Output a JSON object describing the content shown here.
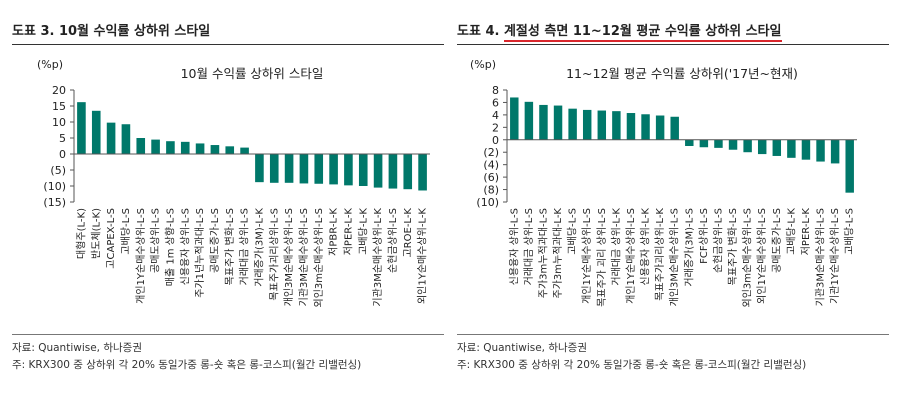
{
  "colors": {
    "bar": "#00786a",
    "axis": "#555555",
    "title_underline": "#d9262c"
  },
  "left": {
    "title_prefix": "도표 3.",
    "title_rest": "10월 수익률 상하위 스타일",
    "source": "자료: Quantiwise, 하나증권",
    "note": "주: KRX300 중 상하위 각 20% 동일가중 롱-숏 혹은 롱-코스피(월간 리밸런싱)"
  },
  "right": {
    "title_prefix": "도표 4.",
    "title_rest": "계절성 측면 11~12월 평균 수익률 상하위 스타일",
    "source": "자료: Quantiwise, 하나증권",
    "note": "주: KRX300 중 상하위 각 20% 동일가중 롱-숏 혹은 롱-코스피(월간 리밸런싱)"
  },
  "chart_data": [
    {
      "type": "bar",
      "title": "10월 수익률 상하위 스타일",
      "ylabel": "(%p)",
      "ylim": [
        -15,
        20
      ],
      "ytick_step": 5,
      "ytick_labels": [
        "20",
        "15",
        "10",
        "5",
        "0",
        "(5)",
        "(10)",
        "(15)"
      ],
      "categories": [
        "대형주(L-K)",
        "반도체(L-K)",
        "고CAPEX-L-S",
        "고배당-L-S",
        "개인1Y순매수상위-L-S",
        "공매도상위-L-S",
        "매출 1m 상향-L-S",
        "신용융자 상위-L-S",
        "주가1년누적과대-L-S",
        "공매도증가-L-S",
        "목표주가 변화-L-S",
        "거래대금 상위-L-S",
        "거래증가(3M)-L-K",
        "목표주가괴리상위-L-S",
        "개인3M순매수상위-L-S",
        "기관3M순매수상위-L-S",
        "외인3m순매수상위-L-S",
        "저PBR-L-K",
        "저PER-L-K",
        "고배당-L-K",
        "기관3M순매수상위-L-K",
        "순현금상위-L-S",
        "고ROE-L-K",
        "외인1Y순매수상위-L-K"
      ],
      "values": [
        16.2,
        13.5,
        9.8,
        9.3,
        5.0,
        4.5,
        4.0,
        3.8,
        3.3,
        2.8,
        2.4,
        2.0,
        -8.8,
        -9.0,
        -9.0,
        -9.2,
        -9.3,
        -9.5,
        -9.8,
        -10.0,
        -10.5,
        -10.8,
        -11.0,
        -11.4
      ]
    },
    {
      "type": "bar",
      "title": "11~12월 평균 수익률 상하위('17년~현재)",
      "ylabel": "(%p)",
      "ylim": [
        -10,
        8
      ],
      "ytick_step": 2,
      "ytick_labels": [
        "8",
        "6",
        "4",
        "2",
        "0",
        "(2)",
        "(4)",
        "(6)",
        "(8)",
        "(10)"
      ],
      "categories": [
        "신용융자 상위-L-S",
        "거래대금 상위-L-S",
        "주가3m누적과대-L-S",
        "주가3m누적과대-L-K",
        "고배당-L-S",
        "개인1Y순매수상위-L-S",
        "목표주가 괴리 상위-L-S",
        "거래대금 상위-L-K",
        "개인1Y순매수상위-L-S",
        "신용융자 상위-L-K",
        "목표주가괴리상위-L-K",
        "개인3M순매수상위-L-S",
        "거래증가(3M)-L-S",
        "FCF상위-L-S",
        "순현금상위-L-S",
        "목표주가 변화-L-S",
        "외인3m순매수상위-L-S",
        "외인1Y순매수상위-L-S",
        "공매도증가-L-S",
        "고배당-L-K",
        "저PER-L-K",
        "기관3M순매수상위-L-S",
        "기관1Y순매수상위-L-S",
        "고배당-L-S"
      ],
      "values": [
        6.8,
        6.1,
        5.6,
        5.5,
        5.0,
        4.8,
        4.7,
        4.6,
        4.3,
        4.1,
        3.9,
        3.7,
        -1.0,
        -1.2,
        -1.3,
        -1.6,
        -2.0,
        -2.3,
        -2.6,
        -2.9,
        -3.2,
        -3.5,
        -3.8,
        -8.5
      ]
    }
  ]
}
